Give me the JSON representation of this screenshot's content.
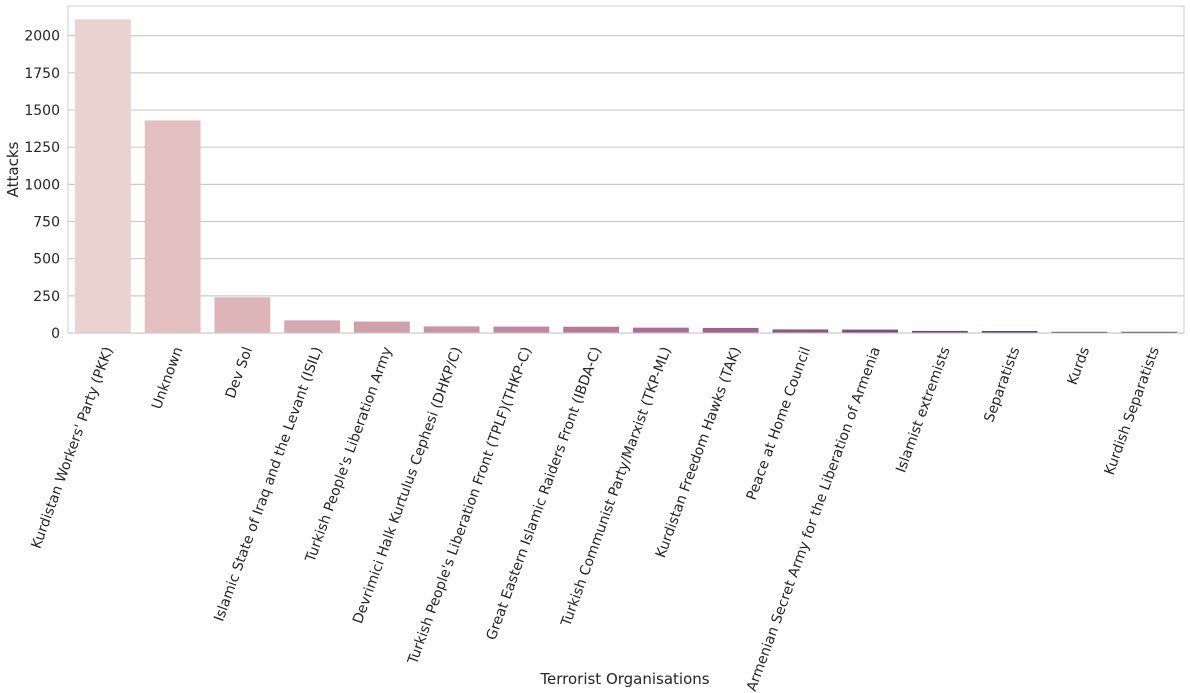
{
  "chart_data": {
    "type": "bar",
    "title": "",
    "xlabel": "Terrorist Organisations",
    "ylabel": "Attacks",
    "ylim": [
      0,
      2200
    ],
    "yticks": [
      0,
      250,
      500,
      750,
      1000,
      1250,
      1500,
      1750,
      2000
    ],
    "grid": "horizontal",
    "categories": [
      "Kurdistan Workers' Party (PKK)",
      "Unknown",
      "Dev Sol",
      "Islamic State of Iraq and the Levant (ISIL)",
      "Turkish People's Liberation Army",
      "Devrimici Halk Kurtulus Cephesi (DHKP/C)",
      "Turkish People's Liberation Front (TPLF)(THKP-C)",
      "Great Eastern Islamic Raiders Front (IBDA-C)",
      "Turkish Communist Party/Marxist (TKP-ML)",
      "Kurdistan Freedom Hawks (TAK)",
      "Peace at Home Council",
      "Armenian Secret Army for the Liberation of Armenia",
      "Islamist extremists",
      "Separatists",
      "Kurds",
      "Kurdish Separatists"
    ],
    "values": [
      2110,
      1430,
      240,
      85,
      77,
      44,
      43,
      42,
      36,
      34,
      24,
      23,
      14,
      13,
      8,
      8
    ],
    "colors": [
      "#e9d2cf",
      "#e3bfbf",
      "#ddb5b8",
      "#d6a9b1",
      "#cf9faa",
      "#c793a5",
      "#bf87a0",
      "#b47b99",
      "#a96f94",
      "#9c638c",
      "#8d5686",
      "#7e4b7c",
      "#6c3f6f",
      "#5c3563",
      "#4c2b55",
      "#3e2348"
    ]
  }
}
